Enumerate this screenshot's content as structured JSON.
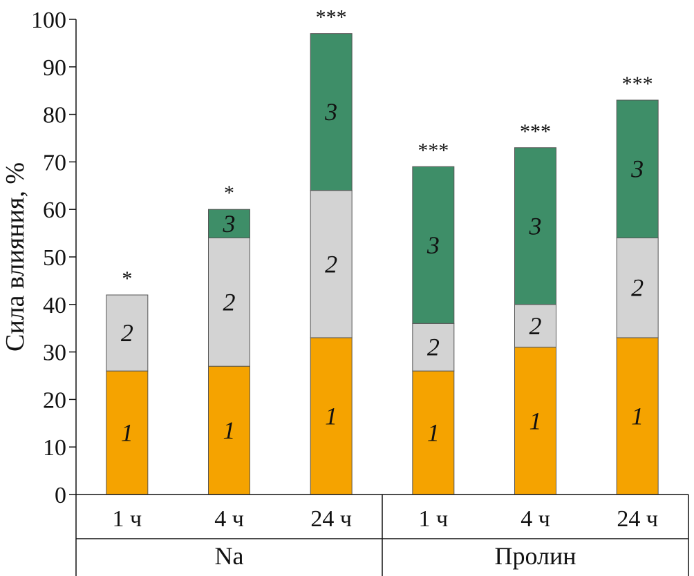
{
  "chart_data": {
    "type": "bar",
    "stacked": true,
    "ylabel": "Сила влияния, %",
    "ylim": [
      0,
      100
    ],
    "yticks": [
      0,
      10,
      20,
      30,
      40,
      50,
      60,
      70,
      80,
      90,
      100
    ],
    "groups": [
      {
        "name": "Na",
        "categories": [
          "1 ч",
          "4 ч",
          "24 ч"
        ]
      },
      {
        "name": "Пролин",
        "categories": [
          "1 ч",
          "4 ч",
          "24 ч"
        ]
      }
    ],
    "categories": [
      "1 ч",
      "4 ч",
      "24 ч",
      "1 ч",
      "4 ч",
      "24 ч"
    ],
    "series": [
      {
        "name": "1",
        "color": "#f5a300",
        "values": [
          26,
          27,
          33,
          26,
          31,
          33
        ]
      },
      {
        "name": "2",
        "color": "#d3d3d3",
        "values": [
          16,
          27,
          31,
          10,
          9,
          21
        ]
      },
      {
        "name": "3",
        "color": "#3e8e68",
        "values": [
          0,
          6,
          33,
          33,
          33,
          29
        ]
      }
    ],
    "annotations": [
      "*",
      "*",
      "***",
      "***",
      "***",
      "***"
    ],
    "grid": false,
    "legend": "none"
  }
}
